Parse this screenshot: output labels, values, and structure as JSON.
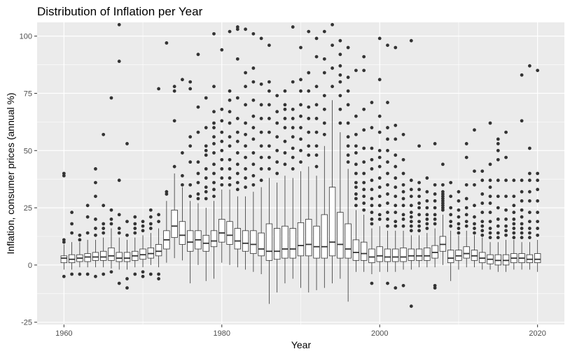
{
  "chart_data": {
    "type": "box",
    "title": "Distribution of Inflation per Year",
    "xlabel": "Year",
    "ylabel": "Inflation, consumer prices (annual %)",
    "xlim": [
      1956.6,
      2023.4
    ],
    "ylim": [
      -26,
      106
    ],
    "x_ticks": [
      1960,
      1980,
      2000,
      2020
    ],
    "y_ticks": [
      -25,
      0,
      25,
      50,
      75,
      100
    ],
    "grid": true,
    "panel_background": "#ebebeb",
    "grid_color": "#ffffff",
    "box_fill": "#ffffff",
    "line_color": "#333333",
    "point_color": "#333333",
    "boxes": [
      {
        "x": 1960,
        "q1": 1.0,
        "median": 3.0,
        "q3": 4.0,
        "lo": -2.0,
        "hi": 9.0,
        "out": [
          -5,
          10,
          11,
          39,
          40
        ]
      },
      {
        "x": 1961,
        "q1": 1.0,
        "median": 2.5,
        "q3": 4.5,
        "lo": -2.0,
        "hi": 10.0,
        "out": [
          -4,
          14,
          18,
          23
        ]
      },
      {
        "x": 1962,
        "q1": 1.5,
        "median": 3.0,
        "q3": 4.5,
        "lo": -1.0,
        "hi": 10.0,
        "out": [
          -4,
          11,
          13
        ]
      },
      {
        "x": 1963,
        "q1": 1.5,
        "median": 3.5,
        "q3": 5.0,
        "lo": -1.0,
        "hi": 11.0,
        "out": [
          -4,
          14,
          21,
          26
        ]
      },
      {
        "x": 1964,
        "q1": 2.0,
        "median": 3.5,
        "q3": 5.5,
        "lo": -1.0,
        "hi": 11.0,
        "out": [
          -5,
          13,
          16,
          20,
          30,
          36,
          42
        ]
      },
      {
        "x": 1965,
        "q1": 2.0,
        "median": 3.5,
        "q3": 6.0,
        "lo": -1.0,
        "hi": 12.0,
        "out": [
          -4,
          14,
          16,
          18,
          26,
          57
        ]
      },
      {
        "x": 1966,
        "q1": 2.0,
        "median": 4.0,
        "q3": 7.5,
        "lo": -1.5,
        "hi": 16.0,
        "out": [
          -3,
          18,
          20,
          24,
          73
        ]
      },
      {
        "x": 1967,
        "q1": 1.5,
        "median": 3.0,
        "q3": 5.5,
        "lo": -2.0,
        "hi": 12.0,
        "out": [
          -8,
          14,
          16,
          22,
          37,
          89,
          105
        ]
      },
      {
        "x": 1968,
        "q1": 1.5,
        "median": 3.0,
        "q3": 5.5,
        "lo": -2.0,
        "hi": 11.0,
        "out": [
          -10,
          -6,
          13,
          19,
          53
        ]
      },
      {
        "x": 1969,
        "q1": 2.0,
        "median": 4.0,
        "q3": 6.0,
        "lo": -1.0,
        "hi": 12.0,
        "out": [
          -4,
          14,
          16,
          18,
          21
        ]
      },
      {
        "x": 1970,
        "q1": 2.5,
        "median": 4.5,
        "q3": 7.0,
        "lo": -1.0,
        "hi": 13.0,
        "out": [
          -5,
          -3,
          15,
          17,
          19
        ]
      },
      {
        "x": 1971,
        "q1": 3.0,
        "median": 5.0,
        "q3": 7.5,
        "lo": 0.0,
        "hi": 14.0,
        "out": [
          -4,
          16,
          18,
          21,
          24
        ]
      },
      {
        "x": 1972,
        "q1": 4.0,
        "median": 6.0,
        "q3": 9.0,
        "lo": -1.0,
        "hi": 16.0,
        "out": [
          -6,
          -4,
          19,
          22,
          77
        ]
      },
      {
        "x": 1973,
        "q1": 7.0,
        "median": 11.0,
        "q3": 15.0,
        "lo": 1.0,
        "hi": 28.0,
        "out": [
          31,
          32,
          97
        ]
      },
      {
        "x": 1974,
        "q1": 12.0,
        "median": 17.0,
        "q3": 24.0,
        "lo": 3.0,
        "hi": 40.0,
        "out": [
          43,
          63,
          76,
          78
        ]
      },
      {
        "x": 1975,
        "q1": 9.0,
        "median": 13.0,
        "q3": 19.0,
        "lo": 2.0,
        "hi": 34.0,
        "out": [
          35,
          39,
          49,
          81
        ]
      },
      {
        "x": 1976,
        "q1": 6.0,
        "median": 10.0,
        "q3": 15.0,
        "lo": -8.0,
        "hi": 28.0,
        "out": [
          30,
          35,
          45,
          52,
          56,
          77,
          80
        ]
      },
      {
        "x": 1977,
        "q1": 7.0,
        "median": 11.0,
        "q3": 15.0,
        "lo": 0.0,
        "hi": 27.0,
        "out": [
          29,
          31,
          36,
          40,
          45,
          58,
          69,
          92
        ]
      },
      {
        "x": 1978,
        "q1": 6.0,
        "median": 9.5,
        "q3": 13.0,
        "lo": -7.0,
        "hi": 25.0,
        "out": [
          29,
          32,
          34,
          38,
          42,
          48,
          50,
          52,
          60,
          73
        ]
      },
      {
        "x": 1979,
        "q1": 8.0,
        "median": 10.5,
        "q3": 15.0,
        "lo": -6.0,
        "hi": 28.0,
        "out": [
          30,
          33,
          36,
          40,
          44,
          49,
          53,
          56,
          60,
          62,
          67,
          78,
          101
        ]
      },
      {
        "x": 1980,
        "q1": 10.0,
        "median": 14.0,
        "q3": 20.0,
        "lo": 1.0,
        "hi": 33.0,
        "out": [
          35,
          38,
          42,
          46,
          50,
          54,
          58,
          63,
          68,
          94
        ]
      },
      {
        "x": 1981,
        "q1": 9.0,
        "median": 13.0,
        "q3": 19.0,
        "lo": 0.0,
        "hi": 33.0,
        "out": [
          35,
          38,
          42,
          46,
          52,
          56,
          62,
          67,
          72,
          76,
          102
        ]
      },
      {
        "x": 1982,
        "q1": 7.0,
        "median": 10.5,
        "q3": 16.0,
        "lo": -1.0,
        "hi": 30.0,
        "out": [
          33,
          36,
          40,
          44,
          49,
          54,
          58,
          64,
          73,
          90,
          103,
          104
        ]
      },
      {
        "x": 1983,
        "q1": 6.0,
        "median": 9.5,
        "q3": 15.0,
        "lo": -2.0,
        "hi": 30.0,
        "out": [
          34,
          38,
          42,
          47,
          52,
          57,
          62,
          70,
          78,
          84,
          103
        ]
      },
      {
        "x": 1984,
        "q1": 5.0,
        "median": 9.0,
        "q3": 15.0,
        "lo": -3.0,
        "hi": 32.0,
        "out": [
          35,
          39,
          44,
          49,
          55,
          60,
          65,
          72,
          80,
          86,
          101
        ]
      },
      {
        "x": 1985,
        "q1": 4.0,
        "median": 7.0,
        "q3": 14.0,
        "lo": -4.0,
        "hi": 34.0,
        "out": [
          37,
          42,
          47,
          52,
          58,
          64,
          70,
          79,
          99
        ]
      },
      {
        "x": 1986,
        "q1": 2.0,
        "median": 6.0,
        "q3": 18.0,
        "lo": -17.0,
        "hi": 38.0,
        "out": [
          42,
          47,
          52,
          58,
          64,
          70,
          76,
          80,
          96
        ]
      },
      {
        "x": 1987,
        "q1": 2.5,
        "median": 6.0,
        "q3": 16.0,
        "lo": -12.0,
        "hi": 36.0,
        "out": [
          40,
          45,
          50,
          56,
          62,
          67,
          74
        ]
      },
      {
        "x": 1988,
        "q1": 3.0,
        "median": 7.0,
        "q3": 17.0,
        "lo": -8.0,
        "hi": 39.0,
        "out": [
          44,
          49,
          54,
          60,
          64,
          68,
          70,
          76
        ]
      },
      {
        "x": 1989,
        "q1": 3.0,
        "median": 7.0,
        "q3": 16.0,
        "lo": -6.0,
        "hi": 38.0,
        "out": [
          42,
          47,
          51,
          56,
          60,
          64,
          68,
          80,
          104
        ]
      },
      {
        "x": 1990,
        "q1": 4.0,
        "median": 8.5,
        "q3": 18.5,
        "lo": -10.0,
        "hi": 41.0,
        "out": [
          45,
          50,
          55,
          60,
          65,
          70,
          76,
          81,
          95
        ]
      },
      {
        "x": 1991,
        "q1": 4.0,
        "median": 9.0,
        "q3": 20.0,
        "lo": -12.0,
        "hi": 43.0,
        "out": [
          48,
          52,
          58,
          64,
          69,
          76,
          84,
          102
        ]
      },
      {
        "x": 1992,
        "q1": 3.0,
        "median": 8.0,
        "q3": 17.0,
        "lo": -11.0,
        "hi": 39.0,
        "out": [
          43,
          48,
          52,
          58,
          64,
          70,
          78,
          91,
          99
        ]
      },
      {
        "x": 1993,
        "q1": 3.0,
        "median": 8.0,
        "q3": 22.0,
        "lo": -10.0,
        "hi": 52.0,
        "out": [
          57,
          62,
          68,
          74,
          84,
          90,
          102
        ]
      },
      {
        "x": 1994,
        "q1": 4.0,
        "median": 10.0,
        "q3": 34.0,
        "lo": -8.0,
        "hi": 72.0,
        "out": [
          78,
          86,
          96,
          105
        ]
      },
      {
        "x": 1995,
        "q1": 3.0,
        "median": 9.0,
        "q3": 23.0,
        "lo": -6.0,
        "hi": 58.0,
        "out": [
          62,
          68,
          74,
          80,
          83,
          87,
          92,
          98
        ]
      },
      {
        "x": 1996,
        "q1": 3.0,
        "median": 7.0,
        "q3": 18.0,
        "lo": -16.0,
        "hi": 42.0,
        "out": [
          45,
          48,
          52,
          56,
          62,
          70,
          76,
          82,
          95
        ]
      },
      {
        "x": 1997,
        "q1": 2.0,
        "median": 5.5,
        "q3": 11.0,
        "lo": -3.0,
        "hi": 24.0,
        "out": [
          26,
          29,
          31,
          34,
          36,
          40,
          44,
          49,
          52,
          57,
          65,
          85
        ]
      },
      {
        "x": 1998,
        "q1": 2.0,
        "median": 5.0,
        "q3": 10.0,
        "lo": -3.0,
        "hi": 22.0,
        "out": [
          24,
          27,
          30,
          33,
          36,
          40,
          45,
          51,
          59,
          68,
          85,
          91
        ]
      },
      {
        "x": 1999,
        "q1": 1.0,
        "median": 3.5,
        "q3": 7.0,
        "lo": -4.0,
        "hi": 16.0,
        "out": [
          -8,
          18,
          20,
          23,
          26,
          29,
          33,
          37,
          42,
          46,
          51,
          60,
          71
        ]
      },
      {
        "x": 2000,
        "q1": 1.5,
        "median": 4.0,
        "q3": 8.0,
        "lo": -3.0,
        "hi": 17.0,
        "out": [
          20,
          22,
          26,
          30,
          34,
          38,
          43,
          47,
          50,
          58,
          65,
          81,
          99
        ]
      },
      {
        "x": 2001,
        "q1": 1.5,
        "median": 3.5,
        "q3": 7.0,
        "lo": -3.0,
        "hi": 15.0,
        "out": [
          -8,
          17,
          20,
          23,
          27,
          31,
          35,
          40,
          45,
          50,
          55,
          60,
          71,
          96
        ]
      },
      {
        "x": 2002,
        "q1": 1.5,
        "median": 3.5,
        "q3": 7.0,
        "lo": -3.0,
        "hi": 15.0,
        "out": [
          -10,
          17,
          19,
          23,
          26,
          30,
          34,
          38,
          43,
          48,
          55,
          61,
          95
        ]
      },
      {
        "x": 2003,
        "q1": 1.5,
        "median": 3.5,
        "q3": 7.5,
        "lo": -2.0,
        "hi": 15.0,
        "out": [
          -9,
          17,
          20,
          22,
          26,
          29,
          32,
          35,
          40,
          46,
          57
        ]
      },
      {
        "x": 2004,
        "q1": 2.0,
        "median": 4.0,
        "q3": 7.0,
        "lo": -2.0,
        "hi": 13.0,
        "out": [
          -18,
          15,
          17,
          19,
          21,
          23,
          26,
          30,
          33,
          37,
          98
        ]
      },
      {
        "x": 2005,
        "q1": 2.0,
        "median": 4.0,
        "q3": 7.0,
        "lo": -1.0,
        "hi": 13.0,
        "out": [
          15,
          17,
          19,
          22,
          25,
          27,
          30,
          33,
          36,
          52
        ]
      },
      {
        "x": 2006,
        "q1": 2.0,
        "median": 4.0,
        "q3": 7.5,
        "lo": -1.0,
        "hi": 14.0,
        "out": [
          16,
          18,
          20,
          22,
          25,
          28,
          32,
          38
        ]
      },
      {
        "x": 2007,
        "q1": 3.0,
        "median": 5.5,
        "q3": 8.5,
        "lo": -1.0,
        "hi": 16.0,
        "out": [
          -10,
          -9,
          18,
          20,
          22,
          25,
          28,
          31,
          35,
          53
        ]
      },
      {
        "x": 2008,
        "q1": 6.0,
        "median": 9.0,
        "q3": 12.5,
        "lo": 0.0,
        "hi": 22.0,
        "out": [
          24,
          25,
          26,
          27,
          28,
          29,
          30,
          31,
          32,
          35,
          44
        ]
      },
      {
        "x": 2009,
        "q1": 1.0,
        "median": 3.0,
        "q3": 6.5,
        "lo": -7.0,
        "hi": 15.0,
        "out": [
          17,
          19,
          22,
          25,
          30,
          36
        ]
      },
      {
        "x": 2010,
        "q1": 2.0,
        "median": 4.0,
        "q3": 6.5,
        "lo": -2.0,
        "hi": 13.0,
        "out": [
          14,
          16,
          18,
          21,
          24,
          28,
          32
        ]
      },
      {
        "x": 2011,
        "q1": 3.0,
        "median": 5.0,
        "q3": 8.0,
        "lo": -1.0,
        "hi": 15.0,
        "out": [
          17,
          19,
          22,
          25,
          29,
          35,
          47,
          53
        ]
      },
      {
        "x": 2012,
        "q1": 2.0,
        "median": 4.0,
        "q3": 6.5,
        "lo": -1.0,
        "hi": 13.0,
        "out": [
          14,
          16,
          18,
          21,
          26,
          35,
          41,
          59
        ]
      },
      {
        "x": 2013,
        "q1": 1.0,
        "median": 3.0,
        "q3": 5.5,
        "lo": -2.0,
        "hi": 12.0,
        "out": [
          13,
          15,
          17,
          19,
          23,
          27,
          31,
          37,
          41
        ]
      },
      {
        "x": 2014,
        "q1": 0.5,
        "median": 2.5,
        "q3": 4.5,
        "lo": -2.0,
        "hi": 10.0,
        "out": [
          12,
          14,
          16,
          19,
          23,
          27,
          30,
          34,
          37,
          44,
          62
        ]
      },
      {
        "x": 2015,
        "q1": 0.0,
        "median": 2.0,
        "q3": 4.5,
        "lo": -3.0,
        "hi": 10.0,
        "out": [
          12,
          14,
          17,
          20,
          25,
          30,
          37,
          46,
          50,
          53,
          55
        ]
      },
      {
        "x": 2016,
        "q1": 0.0,
        "median": 2.0,
        "q3": 4.5,
        "lo": -3.0,
        "hi": 11.0,
        "out": [
          13,
          15,
          17,
          20,
          24,
          30,
          37,
          47,
          58
        ]
      },
      {
        "x": 2017,
        "q1": 1.0,
        "median": 3.0,
        "q3": 5.0,
        "lo": -2.0,
        "hi": 11.0,
        "out": [
          12,
          14,
          16,
          18,
          20,
          23,
          26,
          30,
          37
        ]
      },
      {
        "x": 2018,
        "q1": 1.0,
        "median": 3.0,
        "q3": 5.0,
        "lo": -2.0,
        "hi": 10.0,
        "out": [
          12,
          14,
          16,
          18,
          21,
          24,
          28,
          32,
          37,
          63,
          83
        ]
      },
      {
        "x": 2019,
        "q1": 1.0,
        "median": 2.5,
        "q3": 4.5,
        "lo": -2.0,
        "hi": 10.0,
        "out": [
          12,
          14,
          16,
          19,
          23,
          28,
          32,
          37,
          40,
          51,
          87
        ]
      },
      {
        "x": 2020,
        "q1": 1.0,
        "median": 2.5,
        "q3": 5.0,
        "lo": -3.0,
        "hi": 11.0,
        "out": [
          13,
          16,
          19,
          23,
          28,
          33,
          37,
          40,
          85
        ]
      }
    ]
  }
}
